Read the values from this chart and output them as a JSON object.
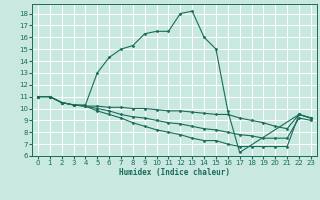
{
  "xlabel": "Humidex (Indice chaleur)",
  "bg_color": "#c8e8e0",
  "grid_color": "#ffffff",
  "line_color": "#1a6b5a",
  "xlim": [
    -0.5,
    23.5
  ],
  "ylim": [
    6,
    18.8
  ],
  "xticks": [
    0,
    1,
    2,
    3,
    4,
    5,
    6,
    7,
    8,
    9,
    10,
    11,
    12,
    13,
    14,
    15,
    16,
    17,
    18,
    19,
    20,
    21,
    22,
    23
  ],
  "yticks": [
    6,
    7,
    8,
    9,
    10,
    11,
    12,
    13,
    14,
    15,
    16,
    17,
    18
  ],
  "lines": [
    {
      "x": [
        0,
        1,
        2,
        3,
        4,
        5,
        6,
        7,
        8,
        9,
        10,
        11,
        12,
        13,
        14,
        15,
        16,
        17,
        22,
        23
      ],
      "y": [
        11,
        11,
        10.5,
        10.3,
        10.3,
        13.0,
        14.3,
        15.0,
        15.3,
        16.3,
        16.5,
        16.5,
        18.0,
        18.2,
        16.0,
        15.0,
        9.8,
        6.3,
        9.5,
        9.2
      ]
    },
    {
      "x": [
        0,
        1,
        2,
        3,
        4,
        5,
        6,
        7,
        8,
        9,
        10,
        11,
        12,
        13,
        14,
        15,
        16,
        17,
        18,
        19,
        20,
        21,
        22,
        23
      ],
      "y": [
        11,
        11,
        10.5,
        10.3,
        10.2,
        10.2,
        10.1,
        10.1,
        10.0,
        10.0,
        9.9,
        9.8,
        9.8,
        9.7,
        9.6,
        9.5,
        9.5,
        9.2,
        9.0,
        8.8,
        8.5,
        8.3,
        9.5,
        9.2
      ]
    },
    {
      "x": [
        0,
        1,
        2,
        3,
        4,
        5,
        6,
        7,
        8,
        9,
        10,
        11,
        12,
        13,
        14,
        15,
        16,
        17,
        18,
        19,
        20,
        21,
        22,
        23
      ],
      "y": [
        11,
        11,
        10.5,
        10.3,
        10.2,
        10.0,
        9.8,
        9.5,
        9.3,
        9.2,
        9.0,
        8.8,
        8.7,
        8.5,
        8.3,
        8.2,
        8.0,
        7.8,
        7.7,
        7.5,
        7.5,
        7.5,
        9.2,
        9.0
      ]
    },
    {
      "x": [
        0,
        1,
        2,
        3,
        4,
        5,
        6,
        7,
        8,
        9,
        10,
        11,
        12,
        13,
        14,
        15,
        16,
        17,
        18,
        19,
        20,
        21,
        22,
        23
      ],
      "y": [
        11,
        11,
        10.5,
        10.3,
        10.2,
        9.8,
        9.5,
        9.2,
        8.8,
        8.5,
        8.2,
        8.0,
        7.8,
        7.5,
        7.3,
        7.3,
        7.0,
        6.8,
        6.8,
        6.8,
        6.8,
        6.8,
        9.5,
        9.2
      ]
    }
  ]
}
